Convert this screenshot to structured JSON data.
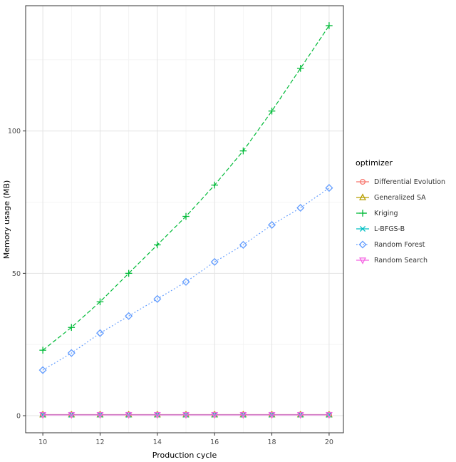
{
  "chart_data": {
    "type": "line",
    "title": "",
    "xlabel": "Production cycle",
    "ylabel": "Memory usage (MB)",
    "legend_title": "optimizer",
    "legend_position": "right",
    "grid": true,
    "x": [
      10,
      11,
      12,
      13,
      14,
      15,
      16,
      17,
      18,
      19,
      20
    ],
    "xlim": [
      9.4,
      20.5
    ],
    "ylim": [
      -6,
      144
    ],
    "x_ticks_major": [
      10,
      12,
      14,
      16,
      18,
      20
    ],
    "x_ticks_minor": [
      11,
      13,
      15,
      17,
      19
    ],
    "y_ticks_major": [
      0,
      50,
      100
    ],
    "y_ticks_minor": [
      25,
      75,
      125
    ],
    "panel_border_color": "#333333",
    "grid_major_color": "#e3e3e3",
    "grid_minor_color": "#f2f2f2",
    "series": [
      {
        "name": "Differential Evolution",
        "color": "#F8766D",
        "marker": "circle-open",
        "linetype": "solid",
        "values": [
          0.4,
          0.4,
          0.4,
          0.4,
          0.4,
          0.4,
          0.4,
          0.4,
          0.4,
          0.4,
          0.4
        ]
      },
      {
        "name": "Generalized SA",
        "color": "#B79F00",
        "marker": "triangle-open",
        "linetype": "solid",
        "values": [
          0.35,
          0.35,
          0.35,
          0.35,
          0.35,
          0.35,
          0.35,
          0.35,
          0.35,
          0.35,
          0.35
        ]
      },
      {
        "name": "Kriging",
        "color": "#00BA38",
        "marker": "plus",
        "linetype": "dashed",
        "values": [
          23,
          31,
          40,
          50,
          60,
          70,
          81,
          93,
          107,
          122,
          137
        ]
      },
      {
        "name": "L-BFGS-B",
        "color": "#00BFC4",
        "marker": "x",
        "linetype": "solid",
        "values": [
          0.3,
          0.3,
          0.3,
          0.3,
          0.3,
          0.3,
          0.3,
          0.3,
          0.3,
          0.3,
          0.3
        ]
      },
      {
        "name": "Random Forest",
        "color": "#619CFF",
        "marker": "diamond-open",
        "linetype": "dotted",
        "values": [
          16,
          22,
          29,
          35,
          41,
          47,
          54,
          60,
          67,
          73,
          80
        ]
      },
      {
        "name": "Random Search",
        "color": "#F564E3",
        "marker": "triangle-down-open",
        "linetype": "solid",
        "values": [
          0.3,
          0.3,
          0.3,
          0.3,
          0.3,
          0.3,
          0.3,
          0.3,
          0.3,
          0.3,
          0.3
        ]
      }
    ]
  }
}
